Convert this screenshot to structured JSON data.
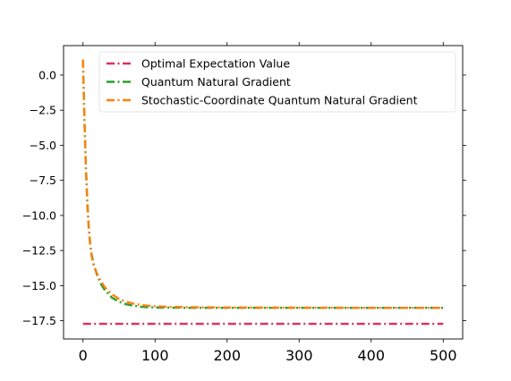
{
  "chart_data": {
    "type": "line",
    "title": "",
    "xlabel": "",
    "ylabel": "",
    "xlim": [
      -27,
      527
    ],
    "ylim": [
      -18.8,
      2.1
    ],
    "x_ticks": [
      0,
      100,
      200,
      300,
      400,
      500
    ],
    "x_tick_labels": [
      "0",
      "100",
      "200",
      "300",
      "400",
      "500"
    ],
    "y_ticks": [
      0.0,
      -2.5,
      -5.0,
      -7.5,
      -10.0,
      -12.5,
      -15.0,
      -17.5
    ],
    "y_tick_labels": [
      "0.0",
      "−2.5",
      "−5.0",
      "−7.5",
      "−10.0",
      "−12.5",
      "−15.0",
      "−17.5"
    ],
    "grid": false,
    "legend_position": "top-right",
    "series": [
      {
        "name": "Optimal Expectation Value",
        "color": "#dc2f5a",
        "style": "dash-dot",
        "x": [
          0,
          500
        ],
        "y": [
          -17.72,
          -17.72
        ]
      },
      {
        "name": "Quantum Natural Gradient",
        "color": "#2ca02c",
        "style": "dash-dot",
        "x": [
          0,
          2,
          4,
          6,
          8,
          10,
          12,
          15,
          20,
          25,
          30,
          40,
          50,
          60,
          70,
          80,
          90,
          100,
          120,
          150,
          200,
          300,
          400,
          500
        ],
        "y": [
          1.1,
          -3.0,
          -6.5,
          -9.0,
          -10.8,
          -12.0,
          -12.8,
          -13.5,
          -14.3,
          -14.9,
          -15.3,
          -15.85,
          -16.15,
          -16.33,
          -16.43,
          -16.5,
          -16.54,
          -16.56,
          -16.57,
          -16.58,
          -16.58,
          -16.58,
          -16.58,
          -16.58
        ]
      },
      {
        "name": "Stochastic-Coordinate Quantum Natural Gradient",
        "color": "#ff7f0e",
        "style": "dash-dot",
        "x": [
          0,
          2,
          4,
          6,
          8,
          10,
          12,
          15,
          20,
          25,
          30,
          40,
          50,
          60,
          70,
          80,
          90,
          100,
          120,
          150,
          200,
          300,
          400,
          500
        ],
        "y": [
          1.1,
          -3.2,
          -6.8,
          -9.3,
          -11.0,
          -12.1,
          -12.9,
          -13.6,
          -14.2,
          -14.7,
          -15.1,
          -15.6,
          -15.95,
          -16.15,
          -16.28,
          -16.37,
          -16.43,
          -16.47,
          -16.51,
          -16.54,
          -16.56,
          -16.57,
          -16.58,
          -16.58
        ]
      }
    ]
  }
}
